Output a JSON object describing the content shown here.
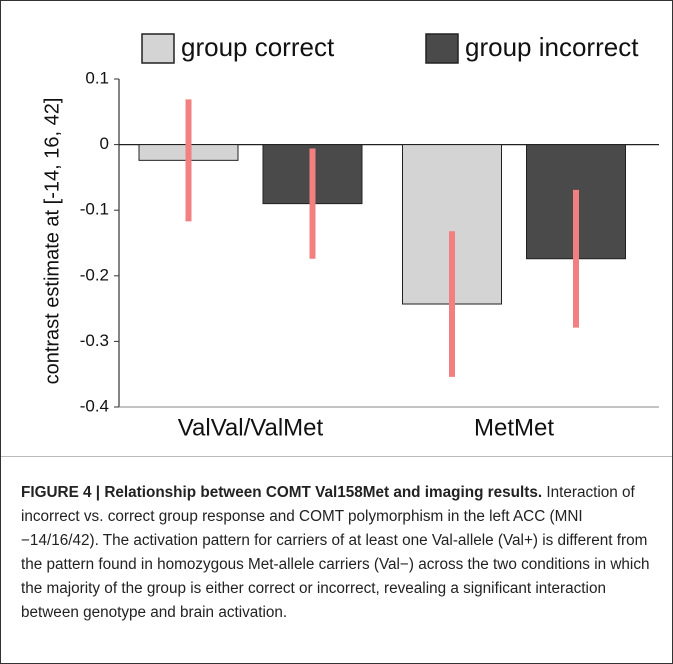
{
  "chart_data": {
    "type": "bar",
    "ylabel": "contrast estimate at [-14, 16, 42]",
    "categories": [
      "ValVal/ValMet",
      "MetMet"
    ],
    "series": [
      {
        "name": "group correct",
        "color": "#d4d4d4",
        "values": [
          -0.024,
          -0.243
        ],
        "errors": [
          0.093,
          0.111
        ]
      },
      {
        "name": "group incorrect",
        "color": "#4a4a4a",
        "values": [
          -0.09,
          -0.174
        ],
        "errors": [
          0.084,
          0.105
        ]
      }
    ],
    "error_color": "#f28080",
    "ylim": [
      -0.4,
      0.1
    ],
    "yticks": [
      0.1,
      0,
      -0.1,
      -0.2,
      -0.3,
      -0.4
    ]
  },
  "caption": {
    "title": "FIGURE 4 | Relationship between COMT Val158Met and imaging results.",
    "text": "Interaction of incorrect vs. correct group response and COMT polymorphism in the left ACC (MNI −14/16/42). The activation pattern for carriers of at least one Val-allele (Val+) is different from the pattern found in homozygous Met-allele carriers (Val−) across the two conditions in which the majority of the group is either correct or incorrect, revealing a significant interaction between genotype and brain activation."
  }
}
